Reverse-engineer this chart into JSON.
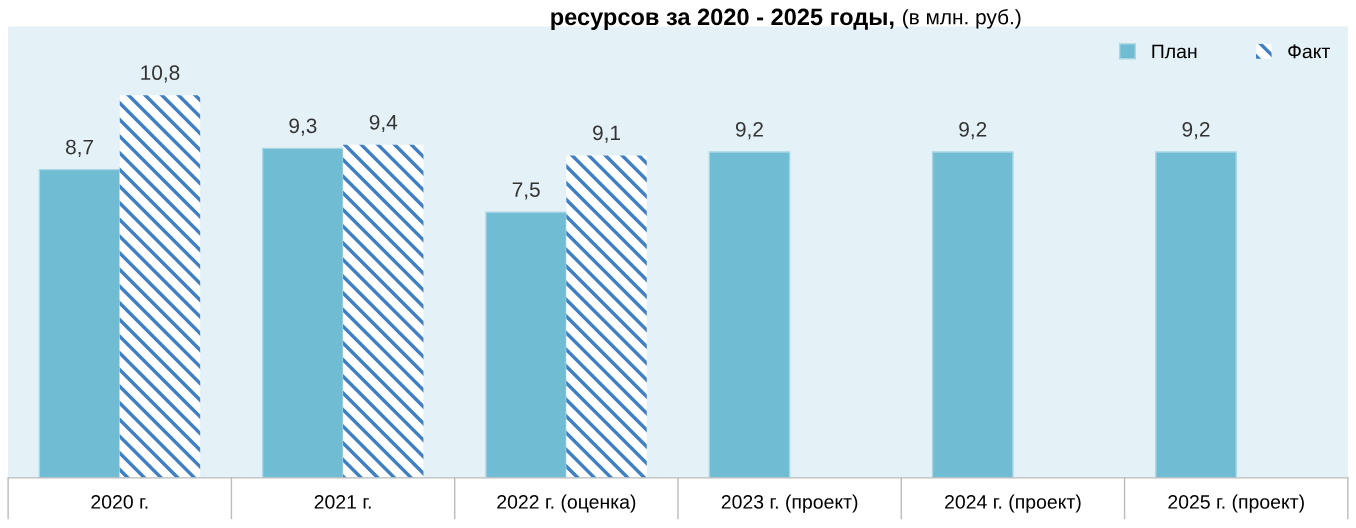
{
  "chart_data": {
    "type": "bar",
    "title": "ресурсов за 2020 - 2025 годы,",
    "subtitle": "(в млн. руб.)",
    "categories": [
      "2020 г.",
      "2021 г.",
      "2022 г. (оценка)",
      "2023 г. (проект)",
      "2024 г. (проект)",
      "2025 г. (проект)"
    ],
    "series": [
      {
        "name": "План",
        "color": "#6fbcd3",
        "values": [
          8.7,
          9.3,
          7.5,
          9.2,
          9.2,
          9.2
        ],
        "value_labels": [
          "8,7",
          "9,3",
          "7,5",
          "9,2",
          "9,2",
          "9,2"
        ]
      },
      {
        "name": "Факт",
        "color": "#3f7fc4",
        "values": [
          10.8,
          9.4,
          9.1,
          null,
          null,
          null
        ],
        "value_labels": [
          "10,8",
          "9,4",
          "9,1",
          null,
          null,
          null
        ]
      }
    ],
    "legend": "top right",
    "grid": false
  }
}
